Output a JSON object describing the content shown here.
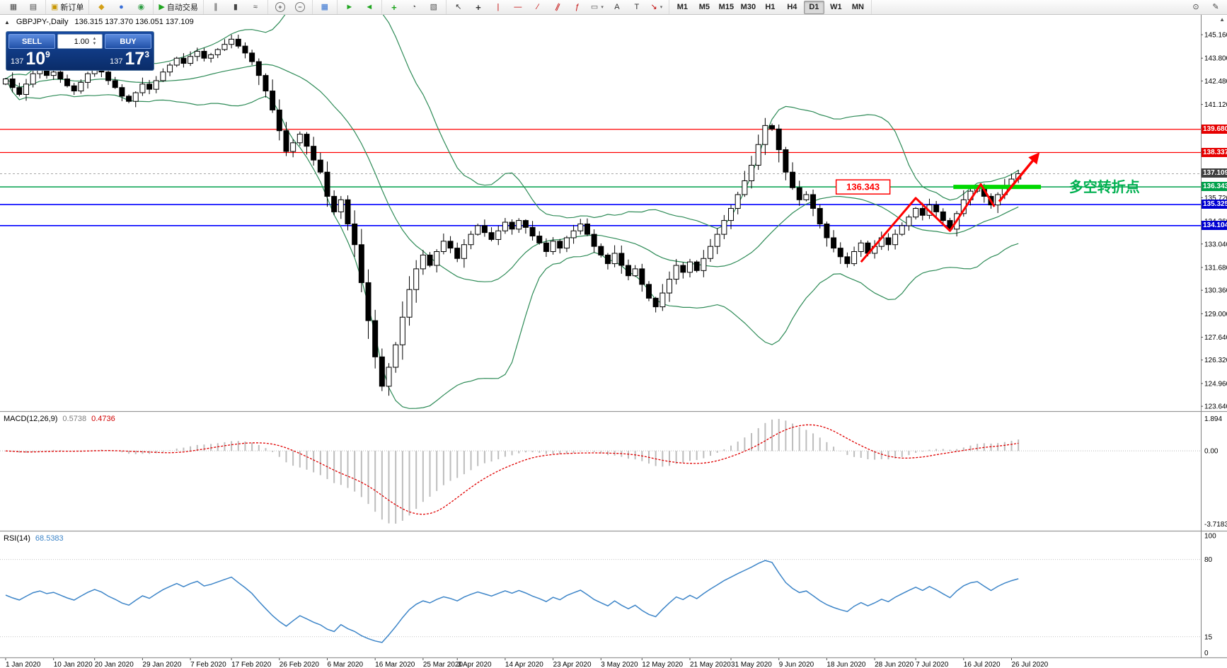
{
  "icons": {
    "collapse_triangle": "▲",
    "spinner_up": "▲",
    "spinner_down": "▼",
    "scroll_up": "▲",
    "dropdown": "▾"
  },
  "toolbar": {
    "groups": [
      {
        "items": [
          {
            "name": "new-chart",
            "glyph": "▦",
            "color": "#4a4a4a"
          },
          {
            "name": "profiles",
            "glyph": "▤",
            "color": "#4a4a4a"
          }
        ]
      },
      {
        "items": [
          {
            "name": "new-order",
            "glyph": "▣",
            "color": "#c89600",
            "label": "新订单"
          }
        ]
      },
      {
        "items": [
          {
            "name": "metaeditor",
            "glyph": "◆",
            "color": "#d4a017"
          },
          {
            "name": "market-watch",
            "glyph": "●",
            "color": "#3a6fd8"
          },
          {
            "name": "navigator",
            "glyph": "◉",
            "color": "#2f9e44"
          }
        ]
      },
      {
        "items": [
          {
            "name": "autotrading",
            "glyph": "▶",
            "color": "#1fa51f",
            "label": "自动交易"
          }
        ]
      },
      {
        "items": [
          {
            "name": "bar-chart-mode",
            "glyph": "∥",
            "color": "#444444"
          },
          {
            "name": "candlestick-mode",
            "glyph": "▮",
            "color": "#444444"
          },
          {
            "name": "line-chart-mode",
            "glyph": "≈",
            "color": "#444444"
          }
        ]
      },
      {
        "items": [
          {
            "name": "zoom-in",
            "glyph": "+",
            "circle": true
          },
          {
            "name": "zoom-out",
            "glyph": "−",
            "circle": true
          }
        ]
      },
      {
        "items": [
          {
            "name": "tile-windows",
            "glyph": "▦",
            "color": "#2f6fd0"
          }
        ]
      },
      {
        "items": [
          {
            "name": "auto-scroll",
            "glyph": "►",
            "color": "#1fa51f"
          },
          {
            "name": "chart-shift",
            "glyph": "◄",
            "color": "#1fa51f"
          }
        ]
      },
      {
        "items": [
          {
            "name": "indicators-add",
            "glyph": "+",
            "color": "#1fa51f",
            "bold": true
          },
          {
            "name": "periods",
            "glyph": "◔",
            "color": "#555555"
          },
          {
            "name": "templates",
            "glyph": "▧",
            "color": "#555555"
          }
        ]
      },
      {
        "items": [
          {
            "name": "cursor-tool",
            "glyph": "↖",
            "color": "#333333"
          },
          {
            "name": "crosshair-tool",
            "glyph": "+",
            "color": "#333333",
            "bold": true
          },
          {
            "name": "vertical-line-tool",
            "glyph": "|",
            "color": "#c00000"
          },
          {
            "name": "horizontal-line-tool",
            "glyph": "—",
            "color": "#c00000"
          },
          {
            "name": "trendline-tool",
            "glyph": "∕",
            "color": "#c00000"
          },
          {
            "name": "channel-tool",
            "glyph": "∥",
            "color": "#c00000",
            "slant": true
          },
          {
            "name": "fibonacci-tool",
            "glyph": "ƒ",
            "color": "#c00000"
          },
          {
            "name": "shapes-tool",
            "glyph": "▭",
            "color": "#555555",
            "dropdown": true
          },
          {
            "name": "text-tool",
            "glyph": "A",
            "color": "#333333"
          },
          {
            "name": "label-tool",
            "glyph": "T",
            "color": "#333333"
          },
          {
            "name": "arrows-tool",
            "glyph": "↘",
            "color": "#c00000",
            "dropdown": true
          }
        ]
      },
      {
        "tf": true,
        "items": [
          {
            "name": "tf-m1",
            "label": "M1"
          },
          {
            "name": "tf-m5",
            "label": "M5"
          },
          {
            "name": "tf-m15",
            "label": "M15"
          },
          {
            "name": "tf-m30",
            "label": "M30"
          },
          {
            "name": "tf-h1",
            "label": "H1"
          },
          {
            "name": "tf-h4",
            "label": "H4"
          },
          {
            "name": "tf-d1",
            "label": "D1",
            "active": true
          },
          {
            "name": "tf-w1",
            "label": "W1"
          },
          {
            "name": "tf-mn",
            "label": "MN"
          }
        ]
      }
    ],
    "right_items": [
      {
        "name": "search",
        "glyph": "⊙",
        "color": "#444444"
      },
      {
        "name": "quick-edit",
        "glyph": "✎",
        "color": "#444444"
      }
    ]
  },
  "chart": {
    "status": {
      "symbol_period": "GBPJPY-,Daily",
      "ohlc": "136.315 137.370 136.051 137.109"
    },
    "one_click": {
      "sell_label": "SELL",
      "buy_label": "BUY",
      "volume": "1.00",
      "sell_price_small": "137",
      "sell_price_big": "10",
      "sell_price_sup": "9",
      "buy_price_small": "137",
      "buy_price_big": "17",
      "buy_price_sup": "3"
    },
    "price_axis": {
      "labels": [
        "145.160",
        "143.800",
        "142.480",
        "141.120",
        "139.760",
        "138.400",
        "137.040",
        "135.720",
        "134.360",
        "133.040",
        "131.680",
        "130.360",
        "129.000",
        "127.640",
        "126.320",
        "124.960",
        "123.640"
      ]
    },
    "badges": [
      {
        "text": "139.680",
        "price": 139.68,
        "bg": "#e60000"
      },
      {
        "text": "138.337",
        "price": 138.337,
        "bg": "#e60000"
      },
      {
        "text": "137.109",
        "price": 137.109,
        "bg": "#3f3f3f"
      },
      {
        "text": "136.343",
        "price": 136.343,
        "bg": "#00a14b"
      },
      {
        "text": "135.325",
        "price": 135.325,
        "bg": "#0000d2"
      },
      {
        "text": "134.104",
        "price": 134.104,
        "bg": "#0000d2"
      }
    ],
    "hlines": [
      {
        "price": 139.68,
        "color": "#ff0000",
        "w": 1.3
      },
      {
        "price": 138.337,
        "color": "#ff0000",
        "w": 1.3
      },
      {
        "price": 136.343,
        "color": "#00a14b",
        "w": 1.5
      },
      {
        "price": 135.325,
        "color": "#0000ff",
        "w": 1.6
      },
      {
        "price": 134.104,
        "color": "#0000ff",
        "w": 1.6
      }
    ],
    "bid_line": {
      "price": 137.109,
      "color": "#a8a8a8"
    },
    "annotations": {
      "zigzag": {
        "color": "#ff0000",
        "width": 3,
        "points": [
          {
            "i": 125,
            "p": 132.0
          },
          {
            "i": 133,
            "p": 135.7
          },
          {
            "i": 138,
            "p": 133.8
          },
          {
            "i": 142.5,
            "p": 136.5
          },
          {
            "i": 144.5,
            "p": 135.2
          }
        ]
      },
      "arrow": {
        "color": "#ff0000",
        "width": 3.5,
        "from": {
          "i": 145.2,
          "p": 135.5
        },
        "to": {
          "i": 150.8,
          "p": 138.2
        }
      },
      "support_bar": {
        "color": "#00d800",
        "width": 6,
        "i1": 138.5,
        "i2": 151.3,
        "price": 136.343
      },
      "price_tag": {
        "text": "136.343",
        "i": 125.3,
        "price": 136.343,
        "color": "#ff0000"
      },
      "note": {
        "text": "多空转折点",
        "i": 155.4,
        "price": 136.3,
        "color": "#00b050"
      }
    },
    "chart_data": {
      "type": "candlestick",
      "symbol": "GBPJPY",
      "timeframe": "Daily",
      "ohlc_current": {
        "open": 136.315,
        "high": 137.37,
        "low": 136.051,
        "close": 137.109
      },
      "ylim": [
        123.4,
        146.35
      ],
      "closes": [
        142.6,
        142.1,
        141.7,
        142.3,
        142.9,
        143.2,
        142.8,
        143.0,
        142.6,
        142.2,
        141.9,
        142.4,
        142.9,
        143.3,
        143.0,
        142.5,
        142.1,
        141.6,
        141.3,
        141.8,
        142.3,
        142.0,
        142.5,
        143.0,
        143.4,
        143.8,
        143.5,
        143.9,
        144.2,
        143.8,
        144.0,
        144.3,
        144.6,
        144.9,
        144.5,
        144.1,
        143.6,
        142.8,
        141.9,
        140.8,
        139.6,
        138.4,
        138.9,
        139.4,
        138.7,
        137.9,
        137.2,
        135.8,
        134.9,
        135.6,
        134.2,
        133.0,
        130.8,
        128.6,
        126.5,
        124.8,
        125.9,
        127.2,
        128.8,
        130.4,
        131.6,
        132.4,
        131.8,
        132.6,
        133.2,
        132.8,
        132.2,
        133.0,
        133.6,
        134.1,
        133.7,
        133.3,
        133.8,
        134.3,
        133.9,
        134.4,
        134.0,
        133.5,
        133.1,
        132.6,
        133.2,
        132.8,
        133.4,
        133.8,
        134.2,
        133.6,
        132.9,
        132.4,
        131.9,
        132.5,
        131.8,
        131.2,
        131.6,
        130.7,
        129.9,
        129.4,
        130.2,
        131.0,
        131.8,
        131.4,
        132.0,
        131.5,
        132.2,
        132.9,
        133.6,
        134.4,
        135.1,
        135.9,
        136.7,
        137.6,
        138.8,
        139.9,
        139.7,
        138.5,
        137.2,
        136.3,
        135.6,
        135.9,
        135.1,
        134.2,
        133.4,
        132.8,
        132.3,
        131.9,
        132.6,
        133.1,
        132.5,
        132.9,
        133.4,
        133.0,
        133.6,
        134.1,
        134.6,
        135.1,
        134.7,
        135.3,
        134.9,
        134.4,
        133.9,
        134.8,
        135.6,
        136.1,
        136.3,
        135.8,
        135.3,
        135.9,
        136.4,
        136.8,
        137.11
      ],
      "indicators": {
        "bollinger": {
          "period": 20,
          "deviation": 2,
          "color": "#2e8b57"
        },
        "macd": {
          "fast": 12,
          "slow": 26,
          "signal": 9,
          "current_main": 0.5738,
          "current_signal": 0.4736
        },
        "rsi": {
          "period": 14,
          "current": 68.5383
        }
      }
    }
  },
  "macd_panel": {
    "label": "MACD(12,26,9)",
    "value_main": "0.5738",
    "value_signal": "0.4736",
    "axis_max": "1.894",
    "axis_zero": "0.00",
    "axis_min": "-3.7183",
    "histogram_color": "#bdbdbd",
    "signal_color": "#e00000"
  },
  "rsi_panel": {
    "label": "RSI(14)",
    "value": "68.5383",
    "line_color": "#3d85c8",
    "axis_labels": [
      "100",
      "80",
      "15",
      "0"
    ],
    "levels": [
      80,
      15
    ]
  },
  "date_axis": {
    "ticks": [
      [
        "1 Jan 2020",
        0
      ],
      [
        "10 Jan 2020",
        7
      ],
      [
        "20 Jan 2020",
        13
      ],
      [
        "29 Jan 2020",
        20
      ],
      [
        "7 Feb 2020",
        27
      ],
      [
        "17 Feb 2020",
        33
      ],
      [
        "26 Feb 2020",
        40
      ],
      [
        "6 Mar 2020",
        47
      ],
      [
        "16 Mar 2020",
        54
      ],
      [
        "25 Mar 2020",
        61
      ],
      [
        "3 Apr 2020",
        66
      ],
      [
        "14 Apr 2020",
        73
      ],
      [
        "23 Apr 2020",
        80
      ],
      [
        "3 May 2020",
        87
      ],
      [
        "12 May 2020",
        93
      ],
      [
        "21 May 2020",
        100
      ],
      [
        "31 May 2020",
        106
      ],
      [
        "9 Jun 2020",
        113
      ],
      [
        "18 Jun 2020",
        120
      ],
      [
        "28 Jun 2020",
        127
      ],
      [
        "7 Jul 2020",
        133
      ],
      [
        "16 Jul 2020",
        140
      ],
      [
        "26 Jul 2020",
        147
      ]
    ]
  }
}
